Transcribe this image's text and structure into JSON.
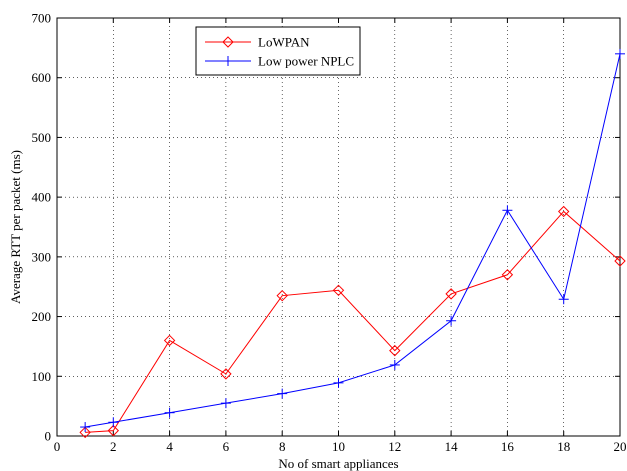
{
  "chart_data": {
    "type": "line",
    "title": "",
    "xlabel": "No of smart appliances",
    "ylabel": "Average RTT per packet (ms)",
    "xlim": [
      0,
      20
    ],
    "ylim": [
      0,
      700
    ],
    "xticks": [
      0,
      2,
      4,
      6,
      8,
      10,
      12,
      14,
      16,
      18,
      20
    ],
    "yticks": [
      0,
      100,
      200,
      300,
      400,
      500,
      600,
      700
    ],
    "grid": true,
    "grid_style": "dotted",
    "legend_position": "top-left",
    "series": [
      {
        "name": "LoWPAN",
        "color": "#ff0000",
        "marker": "diamond",
        "x": [
          1,
          2,
          4,
          6,
          8,
          10,
          12,
          14,
          16,
          18,
          20
        ],
        "y": [
          6,
          9,
          160,
          104,
          235,
          244,
          143,
          238,
          270,
          376,
          293
        ]
      },
      {
        "name": "Low power NPLC",
        "color": "#0000ff",
        "marker": "plus",
        "x": [
          1,
          2,
          4,
          6,
          8,
          10,
          12,
          14,
          16,
          18,
          20
        ],
        "y": [
          15,
          23,
          39,
          55,
          71,
          89,
          119,
          193,
          378,
          229,
          640
        ]
      }
    ]
  }
}
